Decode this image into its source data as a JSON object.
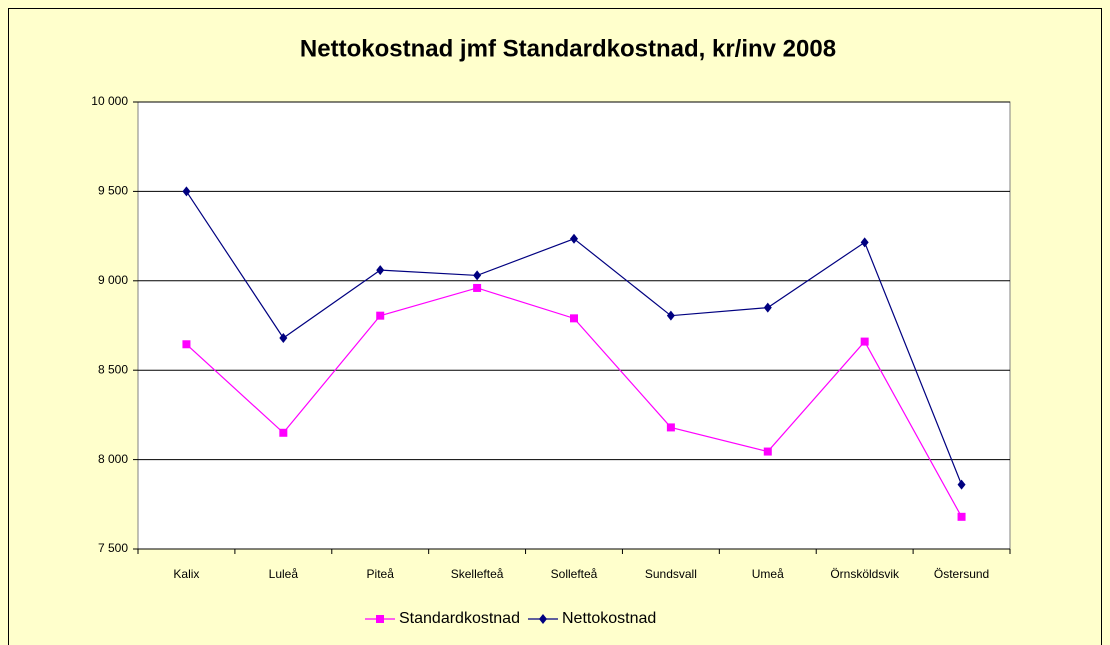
{
  "chart_data": {
    "type": "line",
    "title": "Nettokostnad jmf Standardkostnad, kr/inv 2008",
    "categories": [
      "Kalix",
      "Luleå",
      "Piteå",
      "Skellefteå",
      "Sollefteå",
      "Sundsvall",
      "Umeå",
      "Örnsköldsvik",
      "Östersund"
    ],
    "series": [
      {
        "name": "Standardkostnad",
        "color": "#ff00ff",
        "marker": "square",
        "values": [
          8645,
          8150,
          8805,
          8960,
          8790,
          8180,
          8045,
          8660,
          7680
        ]
      },
      {
        "name": "Nettokostnad",
        "color": "#000080",
        "marker": "diamond",
        "values": [
          9500,
          8680,
          9060,
          9030,
          9235,
          8805,
          8850,
          9215,
          7860
        ]
      }
    ],
    "ylim": [
      7500,
      10000
    ],
    "yticks": [
      {
        "value": 7500,
        "label": "7 500"
      },
      {
        "value": 8000,
        "label": "8 000"
      },
      {
        "value": 8500,
        "label": "8 500"
      },
      {
        "value": 9000,
        "label": "9 000"
      },
      {
        "value": 9500,
        "label": "9 500"
      },
      {
        "value": 10000,
        "label": "10 000"
      }
    ],
    "grid": true,
    "legend": "bottom"
  }
}
